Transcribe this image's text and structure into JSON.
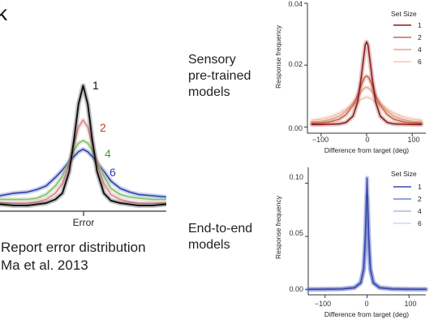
{
  "panel_letter": "k",
  "left": {
    "xtick": "Error",
    "caption_line1": "Report error distribution",
    "caption_line2": "Ma et al. 2013",
    "series_labels": [
      "1",
      "2",
      "4",
      "6"
    ]
  },
  "row_labels": {
    "sensory": [
      "Sensory",
      "pre-trained",
      "models"
    ],
    "e2e": [
      "End-to-end",
      "models"
    ]
  },
  "colors": {
    "left": [
      "#111111",
      "#d9868c",
      "#7fbf6e",
      "#2b3fb0"
    ],
    "sensory": [
      "#8b1a1a",
      "#c8664f",
      "#e8a487",
      "#f2c6b6"
    ],
    "e2e": [
      "#3949ab",
      "#6f86d6",
      "#a8b8e8",
      "#cfd8f2"
    ]
  },
  "chart_data": [
    {
      "type": "line",
      "title": "",
      "xlabel": "",
      "ylabel": "",
      "xlim": [
        -180,
        180
      ],
      "x_ticks": [
        "Error"
      ],
      "series": [
        {
          "name": "1",
          "x": [
            -180,
            -150,
            -120,
            -100,
            -80,
            -60,
            -45,
            -30,
            -20,
            -10,
            0,
            10,
            20,
            30,
            45,
            60,
            80,
            100,
            120,
            150,
            180
          ],
          "values": [
            0.003,
            0.002,
            0.002,
            0.003,
            0.004,
            0.007,
            0.012,
            0.03,
            0.055,
            0.085,
            0.1,
            0.085,
            0.055,
            0.03,
            0.012,
            0.006,
            0.004,
            0.003,
            0.002,
            0.002,
            0.003
          ]
        },
        {
          "name": "2",
          "x": [
            -180,
            -150,
            -120,
            -100,
            -80,
            -60,
            -45,
            -30,
            -20,
            -10,
            0,
            10,
            20,
            30,
            45,
            60,
            80,
            100,
            120,
            150,
            180
          ],
          "values": [
            0.004,
            0.004,
            0.004,
            0.005,
            0.007,
            0.012,
            0.02,
            0.036,
            0.052,
            0.066,
            0.072,
            0.066,
            0.052,
            0.036,
            0.02,
            0.011,
            0.007,
            0.005,
            0.004,
            0.004,
            0.004
          ]
        },
        {
          "name": "4",
          "x": [
            -180,
            -150,
            -120,
            -100,
            -80,
            -60,
            -45,
            -30,
            -20,
            -10,
            0,
            10,
            20,
            30,
            45,
            60,
            80,
            100,
            120,
            150,
            180
          ],
          "values": [
            0.007,
            0.007,
            0.007,
            0.008,
            0.011,
            0.018,
            0.026,
            0.038,
            0.047,
            0.053,
            0.055,
            0.053,
            0.047,
            0.038,
            0.026,
            0.016,
            0.011,
            0.009,
            0.008,
            0.007,
            0.007
          ]
        },
        {
          "name": "6",
          "x": [
            -180,
            -150,
            -120,
            -100,
            -80,
            -60,
            -45,
            -30,
            -20,
            -10,
            0,
            10,
            20,
            30,
            45,
            60,
            80,
            100,
            120,
            150,
            180
          ],
          "values": [
            0.01,
            0.012,
            0.013,
            0.015,
            0.018,
            0.025,
            0.031,
            0.038,
            0.042,
            0.046,
            0.048,
            0.046,
            0.042,
            0.037,
            0.03,
            0.022,
            0.016,
            0.013,
            0.011,
            0.01,
            0.009
          ]
        }
      ]
    },
    {
      "type": "line",
      "title": "",
      "xlabel": "Difference from target (deg)",
      "ylabel": "Response frequency",
      "xlim": [
        -130,
        130
      ],
      "ylim": [
        -0.002,
        0.04
      ],
      "x_ticks": [
        -100,
        0,
        100
      ],
      "y_ticks": [
        0.0,
        0.02,
        0.04
      ],
      "y_tick_labels": [
        "0.00",
        "0.02",
        "0.04"
      ],
      "legend_title": "Set Size",
      "legend_position": "top-right",
      "series": [
        {
          "name": "1",
          "x": [
            -120,
            -100,
            -80,
            -60,
            -45,
            -30,
            -20,
            -12,
            -6,
            -3,
            0,
            3,
            6,
            12,
            20,
            30,
            45,
            60,
            80,
            100,
            120
          ],
          "values": [
            0.0008,
            0.0008,
            0.0009,
            0.001,
            0.0015,
            0.0035,
            0.008,
            0.016,
            0.023,
            0.0265,
            0.0275,
            0.0265,
            0.023,
            0.016,
            0.008,
            0.0035,
            0.0015,
            0.001,
            0.0009,
            0.0008,
            0.0008
          ]
        },
        {
          "name": "2",
          "x": [
            -120,
            -100,
            -80,
            -60,
            -45,
            -30,
            -20,
            -12,
            -6,
            -3,
            0,
            3,
            6,
            12,
            20,
            30,
            45,
            60,
            80,
            100,
            120
          ],
          "values": [
            0.0012,
            0.0013,
            0.0017,
            0.0025,
            0.004,
            0.007,
            0.01,
            0.0135,
            0.0155,
            0.0162,
            0.0165,
            0.0162,
            0.0155,
            0.0135,
            0.01,
            0.007,
            0.004,
            0.0025,
            0.0017,
            0.0013,
            0.0012
          ]
        },
        {
          "name": "4",
          "x": [
            -120,
            -100,
            -80,
            -60,
            -45,
            -30,
            -20,
            -12,
            -6,
            -3,
            0,
            3,
            6,
            12,
            20,
            30,
            45,
            60,
            80,
            100,
            120
          ],
          "values": [
            0.0016,
            0.0018,
            0.0024,
            0.0035,
            0.0052,
            0.0078,
            0.0098,
            0.0115,
            0.0124,
            0.0127,
            0.0128,
            0.0127,
            0.0124,
            0.0115,
            0.0098,
            0.0078,
            0.0052,
            0.0035,
            0.0024,
            0.0018,
            0.0016
          ]
        },
        {
          "name": "6",
          "x": [
            -120,
            -100,
            -80,
            -60,
            -45,
            -30,
            -20,
            -12,
            -6,
            -3,
            0,
            3,
            6,
            12,
            20,
            30,
            45,
            60,
            80,
            100,
            120
          ],
          "values": [
            0.0022,
            0.0026,
            0.0033,
            0.0045,
            0.0058,
            0.0072,
            0.0082,
            0.009,
            0.0094,
            0.0096,
            0.0097,
            0.0096,
            0.0094,
            0.009,
            0.0082,
            0.0072,
            0.0058,
            0.0045,
            0.0033,
            0.0026,
            0.0022
          ]
        }
      ]
    },
    {
      "type": "line",
      "title": "",
      "xlabel": "Difference from target (deg)",
      "ylabel": "Response frequency",
      "xlim": [
        -140,
        140
      ],
      "ylim": [
        -0.005,
        0.115
      ],
      "x_ticks": [
        -100,
        0,
        100
      ],
      "y_ticks": [
        0.0,
        0.05,
        0.1
      ],
      "y_tick_labels": [
        "0.00",
        "0.05",
        "0.10"
      ],
      "legend_title": "Set Size",
      "legend_position": "top-right",
      "series": [
        {
          "name": "1",
          "x": [
            -140,
            -100,
            -60,
            -30,
            -15,
            -8,
            -4,
            -2,
            0,
            2,
            4,
            8,
            15,
            30,
            60,
            100,
            140
          ],
          "values": [
            0.0002,
            0.0003,
            0.0005,
            0.0015,
            0.006,
            0.02,
            0.05,
            0.08,
            0.105,
            0.08,
            0.05,
            0.02,
            0.006,
            0.0015,
            0.0005,
            0.0003,
            0.0002
          ]
        },
        {
          "name": "2",
          "x": [
            -140,
            -100,
            -60,
            -30,
            -15,
            -8,
            -4,
            -2,
            0,
            2,
            4,
            8,
            15,
            30,
            60,
            100,
            140
          ],
          "values": [
            0.0002,
            0.0003,
            0.0006,
            0.0018,
            0.0065,
            0.019,
            0.044,
            0.068,
            0.088,
            0.068,
            0.044,
            0.019,
            0.0065,
            0.0018,
            0.0006,
            0.0003,
            0.0002
          ]
        },
        {
          "name": "4",
          "x": [
            -140,
            -100,
            -60,
            -30,
            -15,
            -8,
            -4,
            -2,
            0,
            2,
            4,
            8,
            15,
            30,
            60,
            100,
            140
          ],
          "values": [
            0.0003,
            0.0004,
            0.0007,
            0.0022,
            0.007,
            0.0175,
            0.038,
            0.056,
            0.07,
            0.056,
            0.038,
            0.0175,
            0.007,
            0.0022,
            0.0007,
            0.0004,
            0.0003
          ]
        },
        {
          "name": "6",
          "x": [
            -140,
            -100,
            -60,
            -30,
            -15,
            -8,
            -4,
            -2,
            0,
            2,
            4,
            8,
            15,
            30,
            60,
            100,
            140
          ],
          "values": [
            0.0003,
            0.0004,
            0.0008,
            0.0025,
            0.0075,
            0.016,
            0.032,
            0.045,
            0.055,
            0.045,
            0.032,
            0.016,
            0.0075,
            0.0025,
            0.0008,
            0.0004,
            0.0003
          ]
        }
      ]
    }
  ]
}
